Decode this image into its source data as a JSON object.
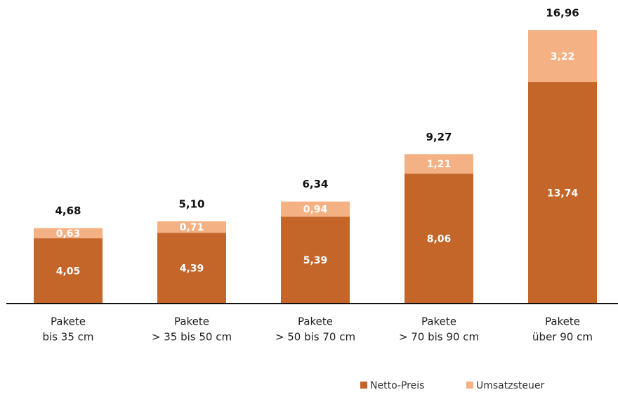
{
  "chart_data": {
    "type": "stacked_bar",
    "categories": [
      [
        "Pakete",
        "bis 35 cm"
      ],
      [
        "Pakete",
        "> 35 bis 50 cm"
      ],
      [
        "Pakete",
        "> 50 bis 70 cm"
      ],
      [
        "Pakete",
        "> 70 bis 90 cm"
      ],
      [
        "Pakete",
        "über 90 cm"
      ]
    ],
    "series": [
      {
        "name": "Netto-Preis",
        "color": "#c4652a",
        "values": [
          4.05,
          4.39,
          5.39,
          8.06,
          13.74
        ],
        "value_labels": [
          "4,05",
          "4,39",
          "5,39",
          "8,06",
          "13,74"
        ]
      },
      {
        "name": "Umsatzsteuer",
        "color": "#f4b183",
        "values": [
          0.63,
          0.71,
          0.94,
          1.21,
          3.22
        ],
        "value_labels": [
          "0,63",
          "0,71",
          "0,94",
          "1,21",
          "3,22"
        ]
      }
    ],
    "totals": [
      4.68,
      5.1,
      6.34,
      9.27,
      16.96
    ],
    "total_labels": [
      "4,68",
      "5,10",
      "6,34",
      "9,27",
      "16,96"
    ],
    "ylim": [
      0,
      17
    ]
  }
}
